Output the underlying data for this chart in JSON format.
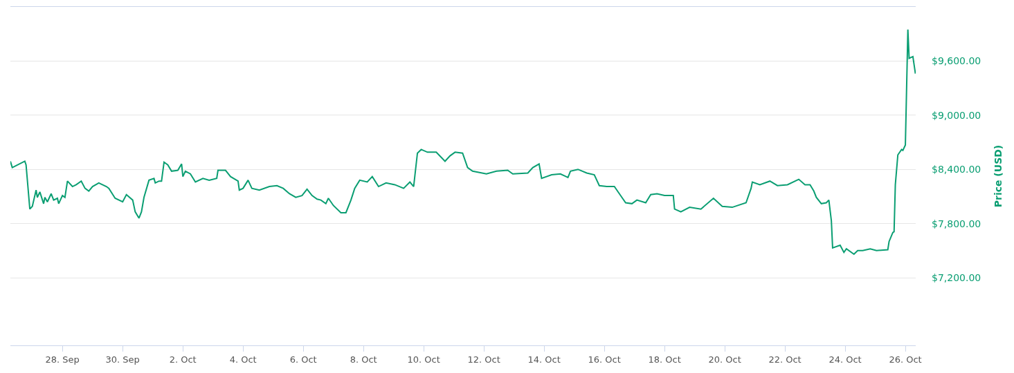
{
  "chart_data": {
    "type": "line",
    "ylabel": "Price (USD)",
    "color": "#0a9e72",
    "grid": "y",
    "marker": "none",
    "line_style": "solid",
    "xlim": [
      "--09-26T06:30",
      "--10-26T08:15"
    ],
    "ylim": [
      6450,
      10200
    ],
    "xticks": [
      {
        "value": "--09-28",
        "label": "28. Sep"
      },
      {
        "value": "--09-30",
        "label": "30. Sep"
      },
      {
        "value": "--10-02",
        "label": "2. Oct"
      },
      {
        "value": "--10-04",
        "label": "4. Oct"
      },
      {
        "value": "--10-06",
        "label": "6. Oct"
      },
      {
        "value": "--10-08",
        "label": "8. Oct"
      },
      {
        "value": "--10-10",
        "label": "10. Oct"
      },
      {
        "value": "--10-12",
        "label": "12. Oct"
      },
      {
        "value": "--10-14",
        "label": "14. Oct"
      },
      {
        "value": "--10-16",
        "label": "16. Oct"
      },
      {
        "value": "--10-18",
        "label": "18. Oct"
      },
      {
        "value": "--10-20",
        "label": "20. Oct"
      },
      {
        "value": "--10-22",
        "label": "22. Oct"
      },
      {
        "value": "--10-24",
        "label": "24. Oct"
      },
      {
        "value": "--10-26",
        "label": "26. Oct"
      }
    ],
    "yticks": [
      {
        "value": 7200,
        "label": "$7,200.00"
      },
      {
        "value": 7800,
        "label": "$7,800.00"
      },
      {
        "value": 8400,
        "label": "$8,400.00"
      },
      {
        "value": 9000,
        "label": "$9,000.00"
      },
      {
        "value": 9600,
        "label": "$9,600.00"
      }
    ],
    "x": [
      "--09-26T06:30",
      "--09-26T08:00",
      "--09-26T18:00",
      "--09-26T19:00",
      "--09-26T22:00",
      "--09-27T00:00",
      "--09-27T03:00",
      "--09-27T04:00",
      "--09-27T06:00",
      "--09-27T09:00",
      "--09-27T10:00",
      "--09-27T12:00",
      "--09-27T15:00",
      "--09-27T17:00",
      "--09-27T20:00",
      "--09-27T21:00",
      "--09-28T00:00",
      "--09-28T02:00",
      "--09-28T04:00",
      "--09-28T08:00",
      "--09-28T11:00",
      "--09-28T15:00",
      "--09-28T18:00",
      "--09-28T21:00",
      "--09-29T00:00",
      "--09-29T05:00",
      "--09-29T11:00",
      "--09-29T13:00",
      "--09-29T18:00",
      "--09-30T00:00",
      "--09-30T03:00",
      "--09-30T08:00",
      "--09-30T10:00",
      "--09-30T13:00",
      "--09-30T15:00",
      "--09-30T17:00",
      "--09-30T21:00",
      "--10-01T01:00",
      "--10-01T02:00",
      "--10-01T05:00",
      "--10-01T07:00",
      "--10-01T09:00",
      "--10-01T12:00",
      "--10-01T15:00",
      "--10-01T20:00",
      "--10-01T23:00",
      "--10-02T00:00",
      "--10-02T02:00",
      "--10-02T06:00",
      "--10-02T10:00",
      "--10-02T16:00",
      "--10-02T21:00",
      "--10-03T03:00",
      "--10-03T04:00",
      "--10-03T10:00",
      "--10-03T14:00",
      "--10-03T20:00",
      "--10-03T21:00",
      "--10-04T00:00",
      "--10-04T04:00",
      "--10-04T07:00",
      "--10-04T13:00",
      "--10-04T21:00",
      "--10-05T03:00",
      "--10-05T08:00",
      "--10-05T13:00",
      "--10-05T18:00",
      "--10-05T23:00",
      "--10-06T03:00",
      "--10-06T07:00",
      "--10-06T11:00",
      "--10-06T14:00",
      "--10-06T18:00",
      "--10-06T20:00",
      "--10-07T00:00",
      "--10-07T06:00",
      "--10-07T10:00",
      "--10-07T14:00",
      "--10-07T17:00",
      "--10-07T21:00",
      "--10-08T03:00",
      "--10-08T07:00",
      "--10-08T12:00",
      "--10-08T18:00",
      "--10-09T01:00",
      "--10-09T08:00",
      "--10-09T13:00",
      "--10-09T16:00",
      "--10-09T19:00",
      "--10-09T22:00",
      "--10-10T03:00",
      "--10-10T10:00",
      "--10-10T17:00",
      "--10-10T21:00",
      "--10-11T01:00",
      "--10-11T07:00",
      "--10-11T11:00",
      "--10-11T15:00",
      "--10-12T02:00",
      "--10-12T10:00",
      "--10-12T19:00",
      "--10-12T23:00",
      "--10-13T11:00",
      "--10-13T15:00",
      "--10-13T20:00",
      "--10-13T22:00",
      "--10-14T06:00",
      "--10-14T13:00",
      "--10-14T19:00",
      "--10-14T21:00",
      "--10-15T03:00",
      "--10-15T10:00",
      "--10-15T16:00",
      "--10-15T20:00",
      "--10-16T02:00",
      "--10-16T08:00",
      "--10-16T14:00",
      "--10-16T17:00",
      "--10-16T22:00",
      "--10-17T02:00",
      "--10-17T09:00",
      "--10-17T13:00",
      "--10-17T18:00",
      "--10-18T00:00",
      "--10-18T07:00",
      "--10-18T08:00",
      "--10-18T13:00",
      "--10-18T20:00",
      "--10-19T05:00",
      "--10-19T15:00",
      "--10-19T22:00",
      "--10-20T06:00",
      "--10-20T17:00",
      "--10-20T21:00",
      "--10-20T22:00",
      "--10-21T04:00",
      "--10-21T12:00",
      "--10-21T18:00",
      "--10-22T02:00",
      "--10-22T11:00",
      "--10-22T16:00",
      "--10-22T20:00",
      "--10-22T23:00",
      "--10-23T01:00",
      "--10-23T05:00",
      "--10-23T09:00",
      "--10-23T11:00",
      "--10-23T13:00",
      "--10-23T14:00",
      "--10-23T20:00",
      "--10-23T23:00",
      "--10-24T01:00",
      "--10-24T07:00",
      "--10-24T10:00",
      "--10-24T14:00",
      "--10-24T20:00",
      "--10-25T01:00",
      "--10-25T10:00",
      "--10-25T11:00",
      "--10-25T14:00",
      "--10-25T15:00",
      "--10-25T16:00",
      "--10-25T18:00",
      "--10-25T21:00",
      "--10-25T22:00",
      "--10-26T00:00",
      "--10-26T02:00",
      "--10-26T03:00",
      "--10-26T06:00",
      "--10-26T08:00"
    ],
    "values": [
      8490,
      8420,
      8490,
      8450,
      7960,
      7990,
      8170,
      8090,
      8150,
      8020,
      8090,
      8040,
      8130,
      8060,
      8080,
      8020,
      8110,
      8090,
      8270,
      8210,
      8230,
      8270,
      8190,
      8160,
      8210,
      8250,
      8210,
      8190,
      8080,
      8040,
      8120,
      8060,
      7930,
      7860,
      7930,
      8090,
      8280,
      8300,
      8250,
      8270,
      8270,
      8480,
      8450,
      8380,
      8390,
      8460,
      8320,
      8380,
      8350,
      8260,
      8300,
      8280,
      8300,
      8390,
      8390,
      8320,
      8270,
      8170,
      8190,
      8280,
      8190,
      8170,
      8210,
      8220,
      8190,
      8130,
      8090,
      8110,
      8180,
      8110,
      8070,
      8060,
      8020,
      8080,
      8000,
      7920,
      7920,
      8060,
      8190,
      8280,
      8260,
      8320,
      8210,
      8250,
      8230,
      8190,
      8260,
      8210,
      8580,
      8620,
      8590,
      8590,
      8490,
      8550,
      8590,
      8580,
      8420,
      8380,
      8350,
      8380,
      8390,
      8350,
      8360,
      8420,
      8460,
      8300,
      8340,
      8350,
      8310,
      8380,
      8400,
      8360,
      8340,
      8220,
      8210,
      8210,
      8090,
      8030,
      8020,
      8060,
      8030,
      8120,
      8130,
      8110,
      8110,
      7960,
      7930,
      7980,
      7960,
      8080,
      7990,
      7980,
      8030,
      8190,
      8260,
      8230,
      8270,
      8220,
      8230,
      8290,
      8230,
      8230,
      8160,
      8090,
      8020,
      8030,
      8060,
      7830,
      7530,
      7560,
      7480,
      7520,
      7460,
      7500,
      7500,
      7520,
      7500,
      7510,
      7600,
      7700,
      7710,
      8230,
      8560,
      8620,
      8610,
      8670,
      9950,
      9630,
      9650,
      9460
    ]
  }
}
